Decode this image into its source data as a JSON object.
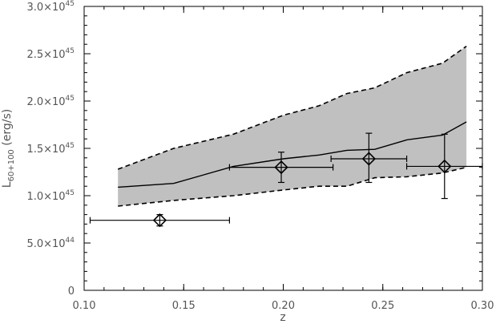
{
  "chart_data": {
    "type": "line",
    "xlabel": "z",
    "ylabel_main": "L",
    "ylabel_sub": "60+100",
    "ylabel_unit": " (erg/s)",
    "xlim": [
      0.1,
      0.3
    ],
    "ylim": [
      0,
      3e+45
    ],
    "grid": false,
    "x_ticks": [
      {
        "value": 0.1,
        "label": "0.10"
      },
      {
        "value": 0.15,
        "label": "0.15"
      },
      {
        "value": 0.2,
        "label": "0.20"
      },
      {
        "value": 0.25,
        "label": "0.25"
      },
      {
        "value": 0.3,
        "label": "0.30"
      }
    ],
    "y_ticks": [
      {
        "value": 0,
        "mant": "0",
        "exp": ""
      },
      {
        "value": 5e+44,
        "mant": "5.0×10",
        "exp": "44"
      },
      {
        "value": 1e+45,
        "mant": "1.0×10",
        "exp": "45"
      },
      {
        "value": 1.5e+45,
        "mant": "1.5×10",
        "exp": "45"
      },
      {
        "value": 2e+45,
        "mant": "2.0×10",
        "exp": "45"
      },
      {
        "value": 2.5e+45,
        "mant": "2.5×10",
        "exp": "45"
      },
      {
        "value": 3e+45,
        "mant": "3.0×10",
        "exp": "45"
      }
    ],
    "band": {
      "x": [
        0.117,
        0.145,
        0.175,
        0.2,
        0.218,
        0.232,
        0.246,
        0.262,
        0.28,
        0.292
      ],
      "upper": [
        1.28e+45,
        1.5e+45,
        1.65e+45,
        1.85e+45,
        1.95e+45,
        2.08e+45,
        2.14e+45,
        2.3e+45,
        2.4e+45,
        2.58e+45
      ],
      "lower": [
        8.9e+44,
        9.5e+44,
        1e+45,
        1.06e+45,
        1.1e+45,
        1.1e+45,
        1.19e+45,
        1.2e+45,
        1.24e+45,
        1.3e+45
      ],
      "fill": "#c0c0c0"
    },
    "median_line": {
      "x": [
        0.117,
        0.145,
        0.175,
        0.2,
        0.218,
        0.232,
        0.246,
        0.262,
        0.28,
        0.292
      ],
      "y": [
        1.09e+45,
        1.13e+45,
        1.31e+45,
        1.39e+45,
        1.43e+45,
        1.48e+45,
        1.49e+45,
        1.59e+45,
        1.64e+45,
        1.78e+45
      ]
    },
    "points": [
      {
        "x": 0.138,
        "y": 7.4e+44,
        "xerr": [
          0.103,
          0.173
        ],
        "yerr": [
          6.8e+44,
          8e+44
        ]
      },
      {
        "x": 0.199,
        "y": 1.3e+45,
        "xerr": [
          0.173,
          0.225
        ],
        "yerr": [
          1.14e+45,
          1.46e+45
        ]
      },
      {
        "x": 0.243,
        "y": 1.39e+45,
        "xerr": [
          0.224,
          0.262
        ],
        "yerr": [
          1.14e+45,
          1.66e+45
        ]
      },
      {
        "x": 0.281,
        "y": 1.31e+45,
        "xerr": [
          0.262,
          0.3
        ],
        "yerr": [
          9.7e+44,
          1.65e+45
        ]
      }
    ]
  }
}
